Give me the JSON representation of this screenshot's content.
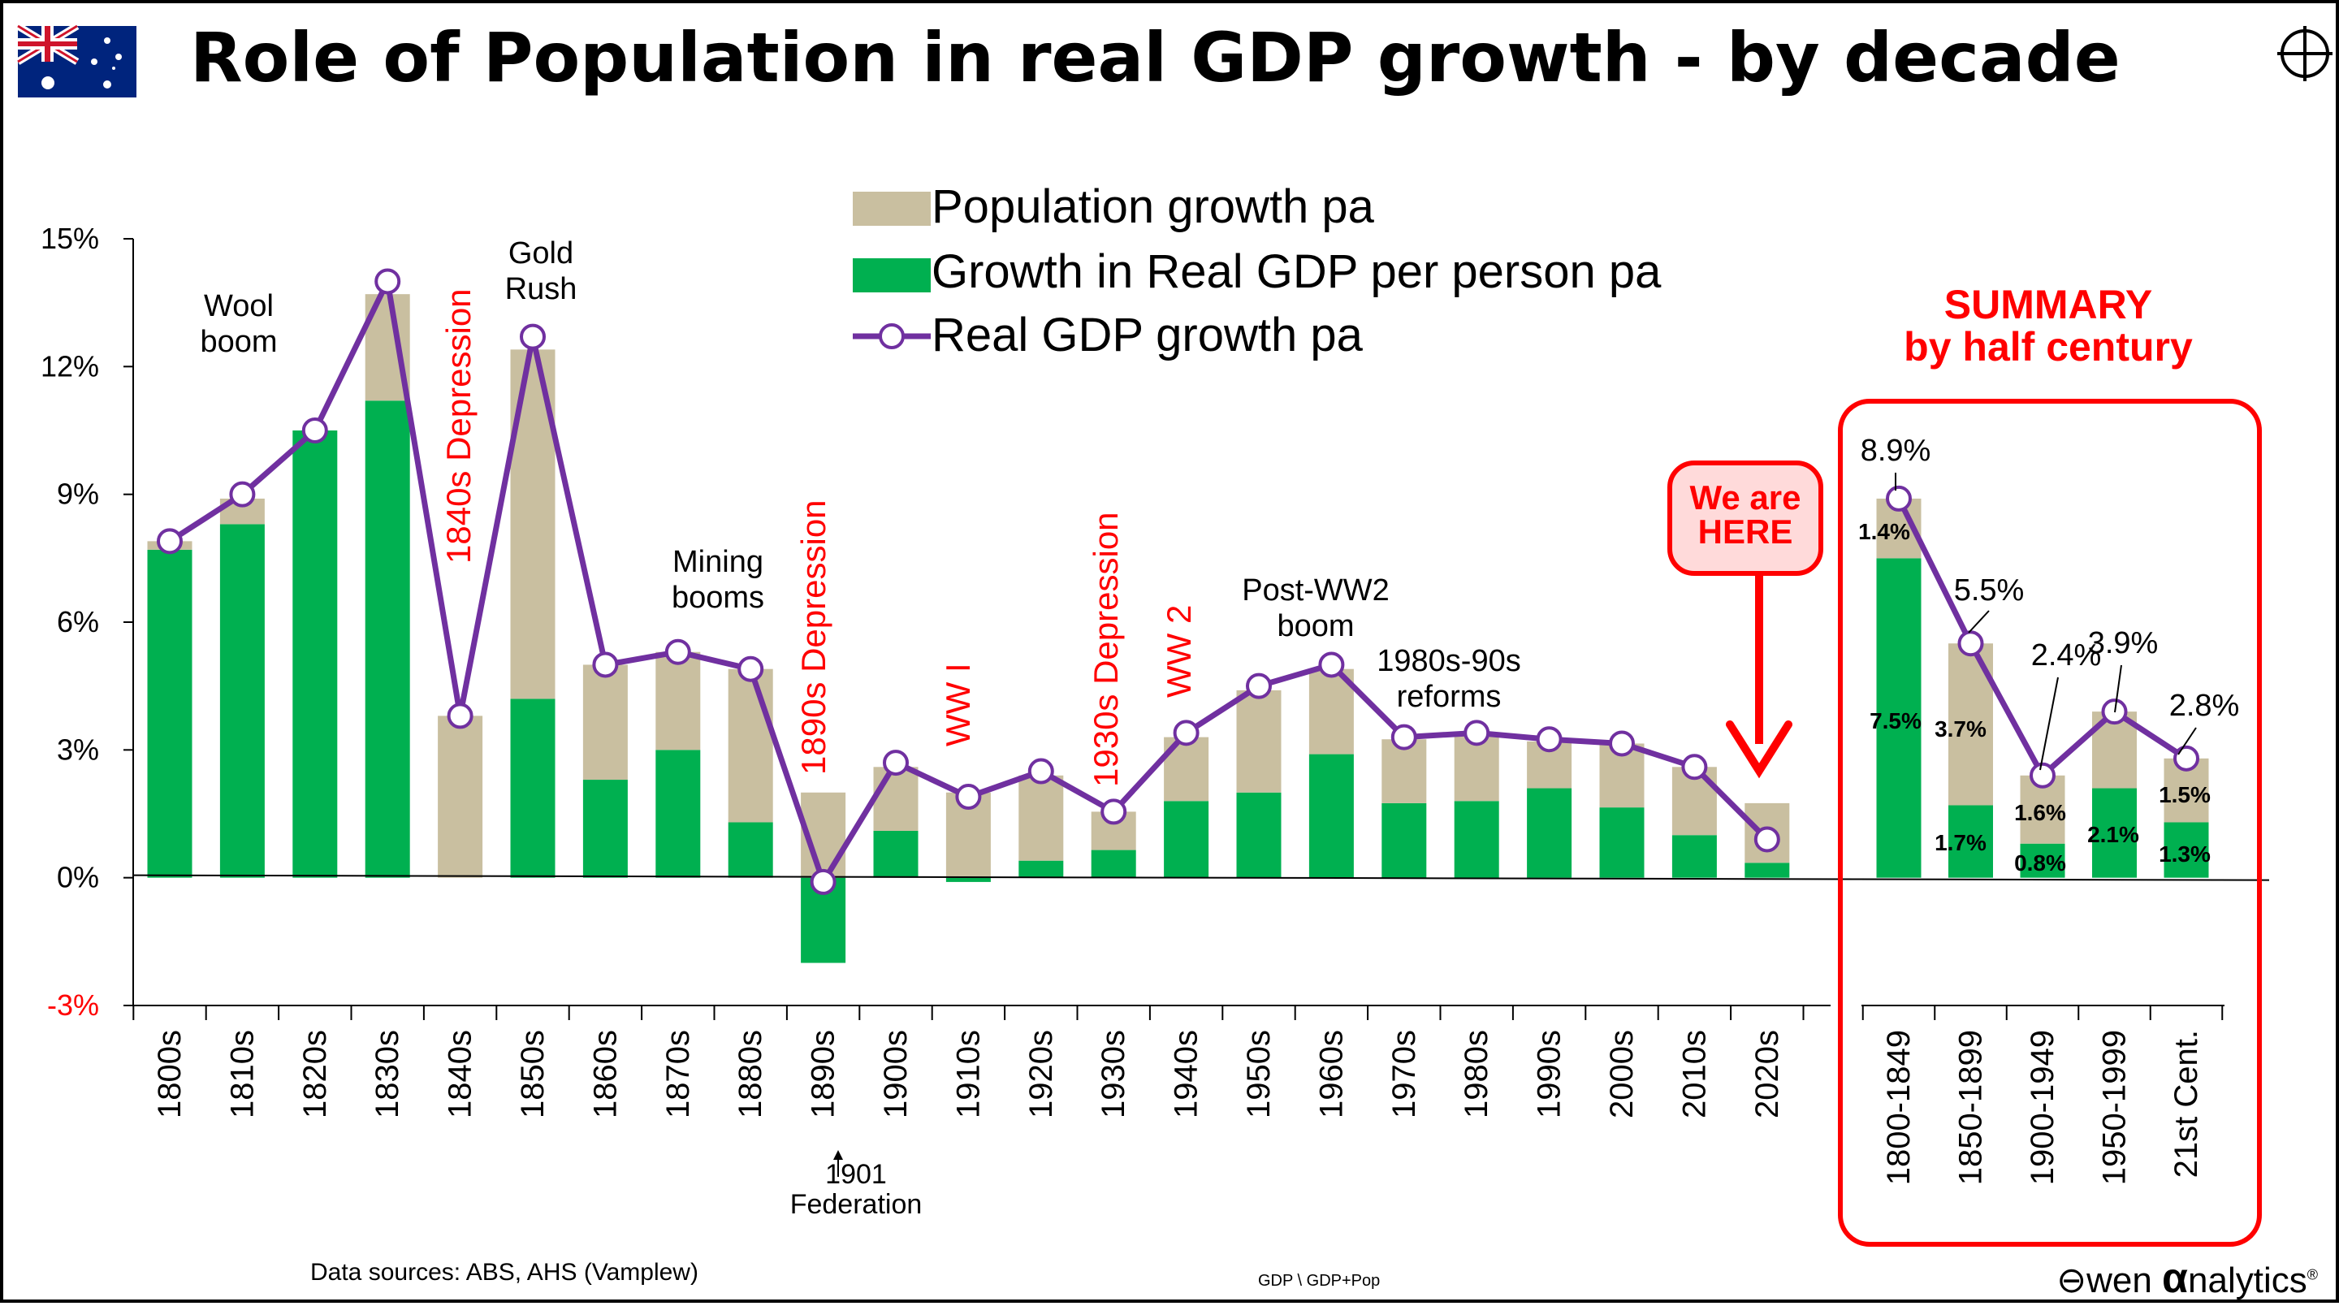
{
  "header": {
    "title": "Role of Population in real GDP growth - by decade"
  },
  "footer": {
    "sources": "Data sources: ABS, AHS (Vamplew)",
    "code": "GDP \\ GDP+Pop",
    "brand_prefix": "wen ",
    "brand_alpha": "α",
    "brand_suffix": "nalytics",
    "brand_reg": "®"
  },
  "colors": {
    "population": "#c9bfa0",
    "gdp_per_person": "#00b050",
    "line": "#7030a0",
    "annotation_red": "#ff0000",
    "callout_fill": "#ffdada"
  },
  "chart_data": {
    "type": "bar",
    "stacked": true,
    "categories": [
      "1800s",
      "1810s",
      "1820s",
      "1830s",
      "1840s",
      "1850s",
      "1860s",
      "1870s",
      "1880s",
      "1890s",
      "1900s",
      "1910s",
      "1920s",
      "1930s",
      "1940s",
      "1950s",
      "1960s",
      "1970s",
      "1980s",
      "1990s",
      "2000s",
      "2010s",
      "2020s"
    ],
    "series": [
      {
        "name": "Population growth pa",
        "kind": "bar",
        "values": [
          0.2,
          0.6,
          0.0,
          2.5,
          3.8,
          8.2,
          2.7,
          2.3,
          3.6,
          2.0,
          1.5,
          2.0,
          2.0,
          0.9,
          1.5,
          2.4,
          2.0,
          1.5,
          1.6,
          1.1,
          1.5,
          1.6,
          1.4
        ]
      },
      {
        "name": "Growth in Real GDP per person pa",
        "kind": "bar",
        "values": [
          7.7,
          8.3,
          10.5,
          11.2,
          0.0,
          4.2,
          2.3,
          3.0,
          1.3,
          -2.0,
          1.1,
          -0.1,
          0.4,
          0.65,
          1.8,
          2.0,
          2.9,
          1.75,
          1.8,
          2.1,
          1.65,
          1.0,
          0.35
        ]
      },
      {
        "name": "Real GDP growth pa",
        "kind": "line",
        "values": [
          7.9,
          9.0,
          10.5,
          14.0,
          3.8,
          12.7,
          5.0,
          5.3,
          4.9,
          -0.1,
          2.7,
          1.9,
          2.5,
          1.55,
          3.4,
          4.5,
          5.0,
          3.3,
          3.4,
          3.25,
          3.15,
          2.6,
          0.9
        ]
      }
    ],
    "summary": {
      "title": "SUMMARY",
      "subtitle": "by half century",
      "categories": [
        "1800-1849",
        "1850-1899",
        "1900-1949",
        "1950-1999",
        "21st Cent."
      ],
      "population": [
        1.4,
        3.7,
        1.6,
        1.8,
        1.5
      ],
      "gdp_per_person": [
        7.5,
        1.7,
        0.8,
        2.1,
        1.3
      ],
      "total": [
        8.9,
        5.5,
        2.4,
        3.9,
        2.8
      ],
      "population_labels": [
        "1.4%",
        "3.7%",
        "1.6%",
        "",
        "1.5%"
      ],
      "gdp_per_person_labels": [
        "7.5%",
        "1.7%",
        "0.8%",
        "2.1%",
        "1.3%"
      ],
      "total_labels": [
        "8.9%",
        "5.5%",
        "2.4%",
        "3.9%",
        "2.8%"
      ]
    },
    "yaxis": {
      "min": -3,
      "max": 15,
      "ticks": [
        -3,
        0,
        3,
        6,
        9,
        12,
        15
      ],
      "tick_labels": [
        "-3%",
        "0%",
        "3%",
        "6%",
        "9%",
        "12%",
        "15%"
      ]
    },
    "legend": {
      "placement": "top-center",
      "entries": [
        "Population growth pa",
        "Growth in Real GDP per person pa",
        "Real GDP growth pa"
      ]
    },
    "annotations": [
      {
        "text": [
          "Wool",
          "boom"
        ],
        "at": "1810s",
        "color": "black"
      },
      {
        "text": [
          "Gold",
          "Rush"
        ],
        "at": "1850s",
        "color": "black"
      },
      {
        "text": [
          "Mining",
          "booms"
        ],
        "at": "1870s-1880s",
        "color": "black"
      },
      {
        "text": [
          "Post-WW2",
          "boom"
        ],
        "at": "1950s-1960s",
        "color": "black"
      },
      {
        "text": [
          "1980s-90s",
          "reforms"
        ],
        "at": "1980s-1990s",
        "color": "black"
      },
      {
        "text": [
          "1840s Depression"
        ],
        "at": "1840s",
        "color": "red",
        "vertical": true
      },
      {
        "text": [
          "1890s Depression"
        ],
        "at": "1890s",
        "color": "red",
        "vertical": true
      },
      {
        "text": [
          "WW I"
        ],
        "at": "1910s",
        "color": "red",
        "vertical": true
      },
      {
        "text": [
          "1930s Depression"
        ],
        "at": "1930s",
        "color": "red",
        "vertical": true
      },
      {
        "text": [
          "WW 2"
        ],
        "at": "1940s",
        "color": "red",
        "vertical": true
      },
      {
        "text": [
          "1901",
          "Federation"
        ],
        "at": "1900s",
        "color": "black",
        "below_axis": true
      }
    ],
    "callout": {
      "text": [
        "We are",
        "HERE"
      ],
      "points_to": "2020s"
    }
  }
}
